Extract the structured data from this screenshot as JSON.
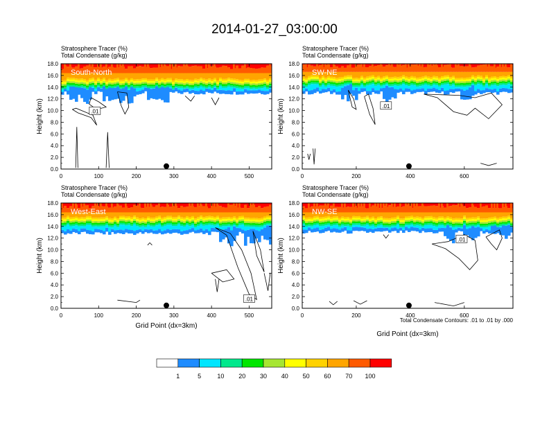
{
  "page": {
    "title": "2014-01-27_03:00:00",
    "footnote": "Total Condensate Contours: .01 to .01 by .000"
  },
  "colorbar": {
    "levels": [
      "1",
      "5",
      "10",
      "20",
      "30",
      "40",
      "50",
      "60",
      "70",
      "100"
    ],
    "colors": [
      "#ffffff",
      "#1e8cff",
      "#00e6ff",
      "#00e88c",
      "#00e600",
      "#a6e632",
      "#ffff00",
      "#ffd200",
      "#ffa500",
      "#ff5a00",
      "#ff0000"
    ]
  },
  "chart_data": [
    {
      "type": "heatmap",
      "section": "South-North",
      "title_line1": "Stratosphere Tracer   (%)",
      "title_line2": "Total Condensate   (g/kg)",
      "ylabel": "Height (km)",
      "xlabel": "",
      "xlim": [
        0,
        560
      ],
      "ylim": [
        0,
        18
      ],
      "xticks": [
        "0",
        "100",
        "200",
        "300",
        "400",
        "500"
      ],
      "xtick_values": [
        0,
        100,
        200,
        300,
        400,
        500
      ],
      "yticks": [
        "0.0",
        "2.0",
        "4.0",
        "6.0",
        "8.0",
        "10.0",
        "12.0",
        "14.0",
        "16.0",
        "18.0"
      ],
      "marker_x": 280,
      "contour_label": ".01",
      "contour_label_pos": [
        90,
        9.9
      ],
      "tracer_bands_km": {
        "red_above": 16.4,
        "cyan_top": 14.2,
        "white_below": 13.0
      },
      "blue_intrusion_x": [
        [
          20,
          80
        ],
        [
          110,
          200
        ],
        [
          230,
          290
        ]
      ],
      "contours": [
        [
          [
            80,
            12.2
          ],
          [
            100,
            11.5
          ],
          [
            120,
            10.6
          ],
          [
            95,
            10.2
          ],
          [
            75,
            11.1
          ],
          [
            80,
            12.2
          ]
        ],
        [
          [
            150,
            13.2
          ],
          [
            175,
            13.0
          ],
          [
            180,
            10.6
          ],
          [
            170,
            9.4
          ],
          [
            160,
            10.8
          ],
          [
            150,
            13.2
          ]
        ],
        [
          [
            30,
            10.2
          ],
          [
            45,
            9.6
          ],
          [
            80,
            8.8
          ],
          [
            95,
            7.5
          ],
          [
            85,
            9.2
          ],
          [
            40,
            10.4
          ],
          [
            30,
            10.2
          ]
        ],
        [
          [
            39,
            0.2
          ],
          [
            42,
            7.2
          ],
          [
            45,
            0.2
          ]
        ],
        [
          [
            120,
            0.2
          ],
          [
            124,
            6.3
          ],
          [
            128,
            0.2
          ]
        ],
        [
          [
            330,
            12.5
          ],
          [
            345,
            11.6
          ],
          [
            355,
            12.5
          ]
        ],
        [
          [
            400,
            12.2
          ],
          [
            410,
            11.0
          ],
          [
            420,
            12.2
          ]
        ]
      ]
    },
    {
      "type": "heatmap",
      "section": "SW-NE",
      "title_line1": "Stratosphere Tracer   (%)",
      "title_line2": "Total Condensate   (g/kg)",
      "ylabel": "Height (km)",
      "xlabel": "",
      "xlim": [
        0,
        780
      ],
      "ylim": [
        0,
        18
      ],
      "xticks": [
        "0",
        "200",
        "400",
        "600"
      ],
      "xtick_values": [
        0,
        200,
        400,
        600
      ],
      "yticks": [
        "0.0",
        "2.0",
        "4.0",
        "6.0",
        "8.0",
        "10.0",
        "12.0",
        "14.0",
        "16.0",
        "18.0"
      ],
      "marker_x": 395,
      "contour_label": ".01",
      "contour_label_pos": [
        310,
        10.8
      ],
      "tracer_bands_km": {
        "red_above": 16.6,
        "cyan_top": 14.6,
        "white_below": 13.0
      },
      "blue_intrusion_x": [
        [
          140,
          210
        ],
        [
          300,
          350
        ],
        [
          580,
          640
        ]
      ],
      "contours": [
        [
          [
            170,
            13.5
          ],
          [
            190,
            12.0
          ],
          [
            200,
            10.2
          ],
          [
            185,
            10.6
          ],
          [
            170,
            13.5
          ]
        ],
        [
          [
            230,
            12.4
          ],
          [
            250,
            9.3
          ],
          [
            270,
            7.6
          ],
          [
            262,
            10.4
          ],
          [
            245,
            12.8
          ],
          [
            230,
            12.4
          ]
        ],
        [
          [
            450,
            12.8
          ],
          [
            500,
            12.2
          ],
          [
            560,
            9.8
          ],
          [
            610,
            9.2
          ],
          [
            640,
            10.4
          ],
          [
            690,
            8.6
          ],
          [
            740,
            11.0
          ],
          [
            700,
            13.0
          ],
          [
            640,
            12.2
          ],
          [
            580,
            12.6
          ],
          [
            450,
            12.8
          ]
        ],
        [
          [
            20,
            2.6
          ],
          [
            25,
            1.6
          ],
          [
            30,
            2.6
          ]
        ],
        [
          [
            40,
            3.5
          ],
          [
            44,
            0.8
          ],
          [
            48,
            3.5
          ]
        ],
        [
          [
            660,
            1.0
          ],
          [
            690,
            0.6
          ],
          [
            720,
            1.0
          ]
        ]
      ]
    },
    {
      "type": "heatmap",
      "section": "West-East",
      "title_line1": "Stratosphere Tracer   (%)",
      "title_line2": "Total Condensate   (g/kg)",
      "ylabel": "Height (km)",
      "xlabel": "Grid Point (dx=3km)",
      "xlim": [
        0,
        560
      ],
      "ylim": [
        0,
        18
      ],
      "xticks": [
        "0",
        "100",
        "200",
        "300",
        "400",
        "500"
      ],
      "xtick_values": [
        0,
        100,
        200,
        300,
        400,
        500
      ],
      "yticks": [
        "0.0",
        "2.0",
        "4.0",
        "6.0",
        "8.0",
        "10.0",
        "12.0",
        "14.0",
        "16.0",
        "18.0"
      ],
      "marker_x": 280,
      "contour_label": ".01",
      "contour_label_pos": [
        500,
        1.6
      ],
      "tracer_bands_km": {
        "red_above": 16.4,
        "cyan_top": 14.4,
        "white_below": 12.8
      },
      "blue_intrusion_x": [
        [
          420,
          470
        ],
        [
          490,
          560
        ]
      ],
      "contours": [
        [
          [
            410,
            13.8
          ],
          [
            440,
            12.5
          ],
          [
            470,
            7.0
          ],
          [
            500,
            2.4
          ],
          [
            520,
            1.5
          ],
          [
            505,
            6.0
          ],
          [
            480,
            10.0
          ],
          [
            450,
            12.8
          ],
          [
            410,
            13.8
          ]
        ],
        [
          [
            400,
            6.0
          ],
          [
            430,
            4.5
          ],
          [
            460,
            5.0
          ],
          [
            440,
            6.6
          ],
          [
            400,
            6.0
          ]
        ],
        [
          [
            510,
            13.2
          ],
          [
            520,
            9.0
          ],
          [
            540,
            6.2
          ],
          [
            530,
            10.0
          ],
          [
            510,
            13.2
          ]
        ],
        [
          [
            230,
            10.8
          ],
          [
            236,
            11.2
          ],
          [
            242,
            10.8
          ]
        ],
        [
          [
            410,
            5.0
          ],
          [
            415,
            2.8
          ],
          [
            420,
            5.0
          ]
        ],
        [
          [
            150,
            1.4
          ],
          [
            200,
            1.0
          ],
          [
            210,
            1.4
          ]
        ],
        [
          [
            540,
            6.0
          ],
          [
            550,
            3.0
          ],
          [
            556,
            6.0
          ]
        ]
      ]
    },
    {
      "type": "heatmap",
      "section": "NW-SE",
      "title_line1": "Stratosphere Tracer   (%)",
      "title_line2": "Total Condensate   (g/kg)",
      "ylabel": "Height (km)",
      "xlabel": "Grid Point (dx=3km)",
      "xlim": [
        0,
        780
      ],
      "ylim": [
        0,
        18
      ],
      "xticks": [
        "0",
        "200",
        "400",
        "600"
      ],
      "xtick_values": [
        0,
        200,
        400,
        600
      ],
      "yticks": [
        "0.0",
        "2.0",
        "4.0",
        "6.0",
        "8.0",
        "10.0",
        "12.0",
        "14.0",
        "16.0",
        "18.0"
      ],
      "marker_x": 395,
      "contour_label": ".01",
      "contour_label_pos": [
        590,
        11.8
      ],
      "tracer_bands_km": {
        "red_above": 16.4,
        "cyan_top": 14.4,
        "white_below": 13.0
      },
      "blue_intrusion_x": [
        [
          520,
          560
        ],
        [
          600,
          660
        ],
        [
          700,
          780
        ]
      ],
      "contours": [
        [
          [
            480,
            11.0
          ],
          [
            530,
            10.2
          ],
          [
            580,
            8.5
          ],
          [
            620,
            6.6
          ],
          [
            650,
            8.2
          ],
          [
            640,
            11.6
          ],
          [
            600,
            12.6
          ],
          [
            540,
            11.4
          ],
          [
            480,
            11.0
          ]
        ],
        [
          [
            680,
            12.2
          ],
          [
            700,
            11.0
          ],
          [
            720,
            10.0
          ],
          [
            740,
            12.0
          ],
          [
            730,
            13.4
          ],
          [
            680,
            12.2
          ]
        ],
        [
          [
            300,
            12.6
          ],
          [
            310,
            12.0
          ],
          [
            320,
            12.6
          ]
        ],
        [
          [
            100,
            1.2
          ],
          [
            115,
            0.6
          ],
          [
            130,
            1.2
          ]
        ],
        [
          [
            490,
            1.0
          ],
          [
            560,
            0.4
          ],
          [
            600,
            1.0
          ]
        ],
        [
          [
            190,
            1.3
          ],
          [
            215,
            0.7
          ],
          [
            240,
            1.3
          ]
        ]
      ]
    }
  ]
}
